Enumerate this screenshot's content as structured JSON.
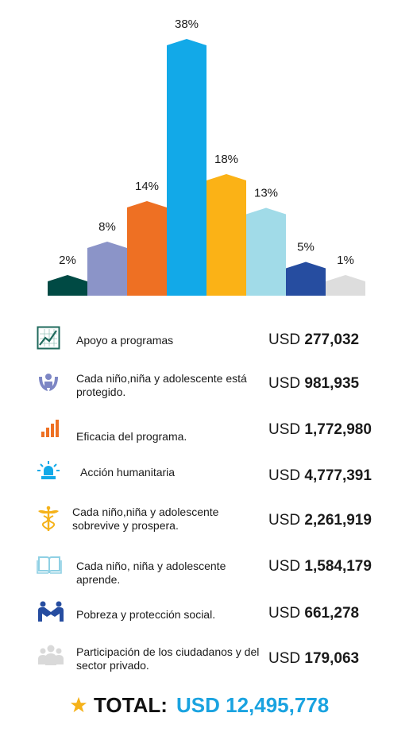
{
  "chart_data": {
    "type": "bar",
    "categories": [
      "Apoyo a programas",
      "Cada niño,niña y adolescente está protegido.",
      "Eficacia del programa.",
      "Acción humanitaria",
      "Cada niño,niña y adolescente sobrevive y prospera.",
      "Cada niño, niña y adolescente aprende.",
      "Pobreza y protección social.",
      "Participación de los ciudadanos y del sector privado."
    ],
    "values": [
      2,
      8,
      14,
      38,
      18,
      13,
      5,
      1
    ],
    "labels": [
      "2%",
      "8%",
      "14%",
      "38%",
      "18%",
      "13%",
      "5%",
      "1%"
    ],
    "colors": [
      "#004a44",
      "#8b94c8",
      "#ee7023",
      "#12a9e8",
      "#fbb216",
      "#a1dbe8",
      "#264da0",
      "#dddddd"
    ]
  },
  "items": [
    {
      "icon": "line-chart-icon",
      "label": "Apoyo a programas",
      "currency": "USD",
      "amount": "277,032"
    },
    {
      "icon": "protected-child-icon",
      "label": "Cada niño,niña y adolescente está protegido.",
      "currency": "USD",
      "amount": "981,935"
    },
    {
      "icon": "bar-chart-icon",
      "label": "Eficacia del programa.",
      "currency": "USD",
      "amount": "1,772,980"
    },
    {
      "icon": "siren-icon",
      "label": "Acción humanitaria",
      "currency": "USD",
      "amount": "4,777,391"
    },
    {
      "icon": "caduceus-icon",
      "label": "Cada niño,niña y adolescente sobrevive y prospera.",
      "currency": "USD",
      "amount": "2,261,919"
    },
    {
      "icon": "open-book-icon",
      "label": "Cada niño, niña y adolescente aprende.",
      "currency": "USD",
      "amount": "1,584,179"
    },
    {
      "icon": "handshake-icon",
      "label": "Pobreza y protección social.",
      "currency": "USD",
      "amount": "661,278"
    },
    {
      "icon": "people-group-icon",
      "label": "Participación de los ciudadanos y del sector privado.",
      "currency": "USD",
      "amount": "179,063"
    }
  ],
  "total": {
    "label": "TOTAL:",
    "value": "USD 12,495,778",
    "icon": "star-icon",
    "icon_color": "#f5b21a"
  }
}
